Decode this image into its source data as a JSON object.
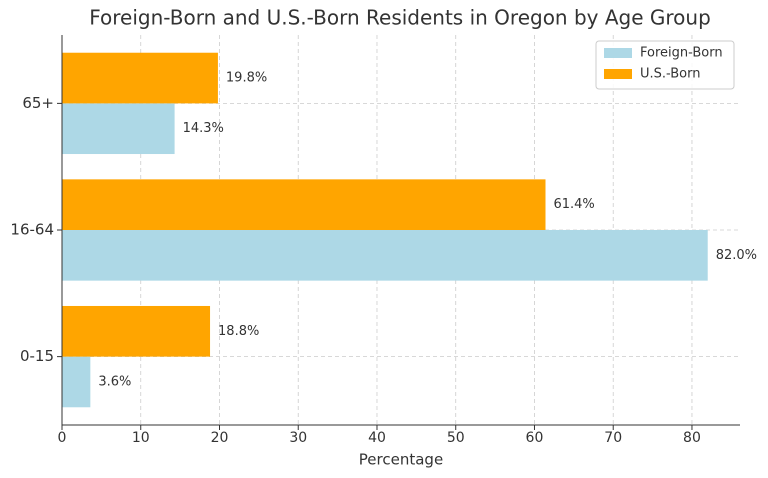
{
  "chart_data": {
    "type": "hbar",
    "title": "Foreign-Born and U.S.-Born Residents in Oregon by Age Group",
    "x_label": "Percentage",
    "categories": [
      "0-15",
      "16-64",
      "65+"
    ],
    "series": [
      {
        "name": "Foreign-Born",
        "color": "#add8e6",
        "values": [
          3.6,
          82.0,
          14.3
        ],
        "value_labels": [
          "3.6%",
          "82.0%",
          "14.3%"
        ]
      },
      {
        "name": "U.S.-Born",
        "color": "#ffa500",
        "values": [
          18.8,
          61.4,
          19.8
        ],
        "value_labels": [
          "18.8%",
          "61.4%",
          "19.8%"
        ]
      }
    ],
    "xlim": [
      0,
      86.1
    ],
    "xticks": [
      0,
      10,
      20,
      30,
      40,
      50,
      60,
      70,
      80
    ],
    "grid": true,
    "legend": "upper right"
  }
}
